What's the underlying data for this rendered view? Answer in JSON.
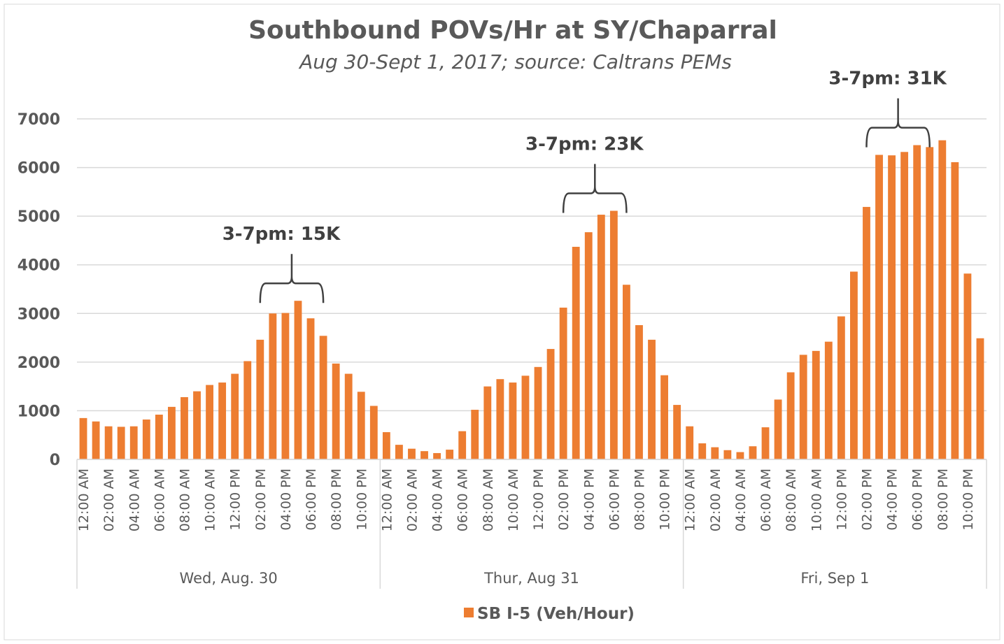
{
  "chart_data": {
    "type": "bar",
    "title": "Southbound POVs/Hr at SY/Chaparral",
    "subtitle": "Aug 30-Sept 1, 2017; source: Caltrans PEMs",
    "categories": [
      "12:00 AM",
      null,
      "02:00 AM",
      null,
      "04:00 AM",
      null,
      "06:00 AM",
      null,
      "08:00 AM",
      null,
      "10:00 AM",
      null,
      "12:00 PM",
      null,
      "02:00 PM",
      null,
      "04:00 PM",
      null,
      "06:00 PM",
      null,
      "08:00 PM",
      null,
      "10:00 PM",
      null,
      "12:00 AM",
      null,
      "02:00 AM",
      null,
      "04:00 AM",
      null,
      "06:00 AM",
      null,
      "08:00 AM",
      null,
      "10:00 AM",
      null,
      "12:00 PM",
      null,
      "02:00 PM",
      null,
      "04:00 PM",
      null,
      "06:00 PM",
      null,
      "08:00 PM",
      null,
      "10:00 PM",
      null,
      "12:00 AM",
      null,
      "02:00 AM",
      null,
      "04:00 AM",
      null,
      "06:00 AM",
      null,
      "08:00 AM",
      null,
      "10:00 AM",
      null,
      "12:00 PM",
      null,
      "02:00 PM",
      null,
      "04:00 PM",
      null,
      "06:00 PM",
      null,
      "08:00 PM",
      null,
      "10:00 PM",
      null
    ],
    "groups": [
      "Wed, Aug. 30",
      "Thur, Aug 31",
      "Fri, Sep 1"
    ],
    "series": [
      {
        "name": "SB I-5 (Veh/Hour)",
        "color": "#ed7d31",
        "values": [
          850,
          780,
          680,
          670,
          680,
          820,
          920,
          1080,
          1280,
          1400,
          1530,
          1580,
          1760,
          2020,
          2460,
          3000,
          3010,
          3260,
          2900,
          2540,
          1970,
          1760,
          1390,
          1100,
          560,
          300,
          220,
          170,
          130,
          200,
          580,
          1020,
          1500,
          1650,
          1580,
          1720,
          1900,
          2270,
          3120,
          4370,
          4670,
          5030,
          5110,
          3590,
          2760,
          2460,
          1730,
          1120,
          680,
          330,
          250,
          190,
          150,
          270,
          660,
          1230,
          1790,
          2150,
          2230,
          2420,
          2940,
          3860,
          5190,
          6260,
          6250,
          6320,
          6460,
          6420,
          6560,
          6110,
          3820,
          2490
        ]
      }
    ],
    "annotations": [
      "3-7pm: 15K",
      "3-7pm: 23K",
      "3-7pm: 31K"
    ],
    "ylim": [
      0,
      7000
    ],
    "yticks": [
      0,
      1000,
      2000,
      3000,
      4000,
      5000,
      6000,
      7000
    ],
    "grid": true,
    "legend": "bottom"
  }
}
